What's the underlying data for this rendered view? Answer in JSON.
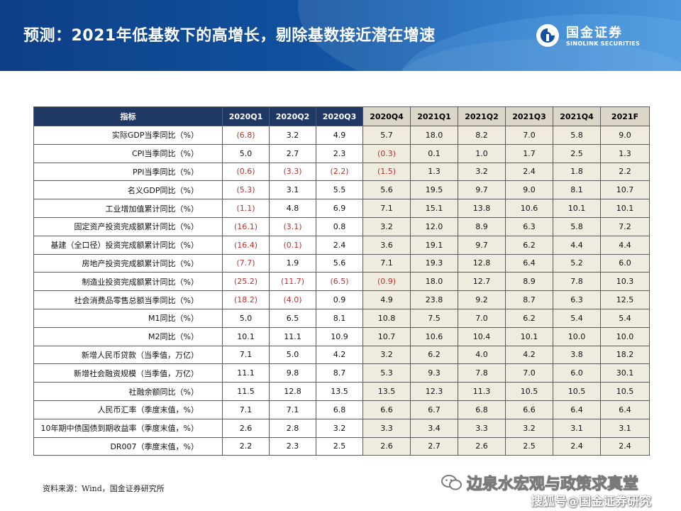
{
  "page": {
    "title": "预测：2021年低基数下的高增长，剔除基数接近潜在增速"
  },
  "logo": {
    "icon": "sinolink-logo-icon",
    "name_cn": "国金证券",
    "name_en": "SINOLINK SECURITIES"
  },
  "table": {
    "headers": [
      "指标",
      "2020Q1",
      "2020Q2",
      "2020Q3",
      "2020Q4",
      "2021Q1",
      "2021Q2",
      "2021Q3",
      "2021Q4",
      "2021F"
    ],
    "forecast_start_index": 4,
    "colors": {
      "header_bg": "#1f3864",
      "forecast_bg": "#efebde",
      "negative_text": "#c0302a"
    },
    "rows": [
      {
        "label": "实际GDP当季同比（%）",
        "cells": [
          "(6.8)",
          "3.2",
          "4.9",
          "5.7",
          "18.0",
          "8.2",
          "7.0",
          "5.8",
          "9.0"
        ]
      },
      {
        "label": "CPI当季同比（%）",
        "cells": [
          "5.0",
          "2.7",
          "2.3",
          "(0.3)",
          "0.1",
          "1.0",
          "1.7",
          "2.5",
          "1.3"
        ]
      },
      {
        "label": "PPI当季同比（%）",
        "cells": [
          "(0.6)",
          "(3.3)",
          "(2.2)",
          "(1.5)",
          "1.3",
          "3.2",
          "2.4",
          "1.8",
          "2.2"
        ]
      },
      {
        "label": "名义GDP同比（%）",
        "cells": [
          "(5.3)",
          "3.1",
          "5.5",
          "5.6",
          "19.5",
          "9.7",
          "9.0",
          "8.1",
          "10.7"
        ]
      },
      {
        "label": "工业增加值累计同比（%）",
        "cells": [
          "(1.1)",
          "4.8",
          "6.9",
          "7.1",
          "15.1",
          "13.8",
          "10.6",
          "10.1",
          "10.1"
        ]
      },
      {
        "label": "固定资产投资完成额累计同比（%）",
        "cells": [
          "(16.1)",
          "(3.1)",
          "0.8",
          "3.2",
          "12.0",
          "8.9",
          "6.3",
          "5.8",
          "7.2"
        ]
      },
      {
        "label": "基建（全口径）投资完成额累计同比（%）",
        "cells": [
          "(16.4)",
          "(0.1)",
          "2.4",
          "3.6",
          "19.1",
          "9.7",
          "6.2",
          "4.4",
          "4.4"
        ]
      },
      {
        "label": "房地产投资完成额累计同比（%）",
        "cells": [
          "(7.7)",
          "1.9",
          "5.6",
          "7.1",
          "19.3",
          "12.8",
          "6.4",
          "5.2",
          "6.0"
        ]
      },
      {
        "label": "制造业投资完成额累计同比（%）",
        "cells": [
          "(25.2)",
          "(11.7)",
          "(6.5)",
          "(0.9)",
          "18.0",
          "12.7",
          "8.9",
          "7.8",
          "10.3"
        ]
      },
      {
        "label": "社会消费品零售总额当季同比（%）",
        "cells": [
          "(18.2)",
          "(4.0)",
          "0.9",
          "4.9",
          "23.8",
          "9.2",
          "8.7",
          "6.3",
          "12.5"
        ]
      },
      {
        "label": "M1同比（%）",
        "cells": [
          "5.0",
          "6.5",
          "8.1",
          "10.8",
          "7.5",
          "7.0",
          "6.2",
          "5.4",
          "5.4"
        ]
      },
      {
        "label": "M2同比（%）",
        "cells": [
          "10.1",
          "11.1",
          "10.9",
          "10.7",
          "10.6",
          "10.4",
          "10.1",
          "10.0",
          "10.0"
        ]
      },
      {
        "label": "新增人民币贷款（当季值，万亿）",
        "cells": [
          "7.1",
          "5.0",
          "4.2",
          "3.2",
          "6.2",
          "4.0",
          "4.2",
          "3.8",
          "18.2"
        ]
      },
      {
        "label": "新增社会融资规模（当季值，万亿）",
        "cells": [
          "11.1",
          "9.8",
          "8.7",
          "5.3",
          "9.3",
          "7.8",
          "7.0",
          "6.0",
          "30.1"
        ]
      },
      {
        "label": "社融余额同比（%）",
        "cells": [
          "11.5",
          "12.8",
          "13.5",
          "13.5",
          "12.3",
          "11.3",
          "10.5",
          "10.5",
          "10.5"
        ]
      },
      {
        "label": "人民币汇率（季度末值，%）",
        "cells": [
          "7.1",
          "7.1",
          "6.8",
          "6.6",
          "6.7",
          "6.8",
          "6.6",
          "6.4",
          "6.4"
        ]
      },
      {
        "label": "10年期中债国债到期收益率（季度末值，%）",
        "cells": [
          "2.6",
          "2.8",
          "3.2",
          "3.3",
          "3.4",
          "3.3",
          "3.2",
          "3.1",
          "3.1"
        ]
      },
      {
        "label": "DR007（季度末值，%）",
        "cells": [
          "2.2",
          "2.3",
          "2.5",
          "2.6",
          "2.7",
          "2.6",
          "2.5",
          "2.4",
          "2.4"
        ]
      }
    ]
  },
  "footer": {
    "source": "资料来源：Wind，国金证券研究所",
    "watermark_line1": "边泉水宏观与政策求真堂",
    "watermark_line1_icon": "wechat-icon",
    "watermark_line2": "搜狐号@国金证券研究"
  }
}
